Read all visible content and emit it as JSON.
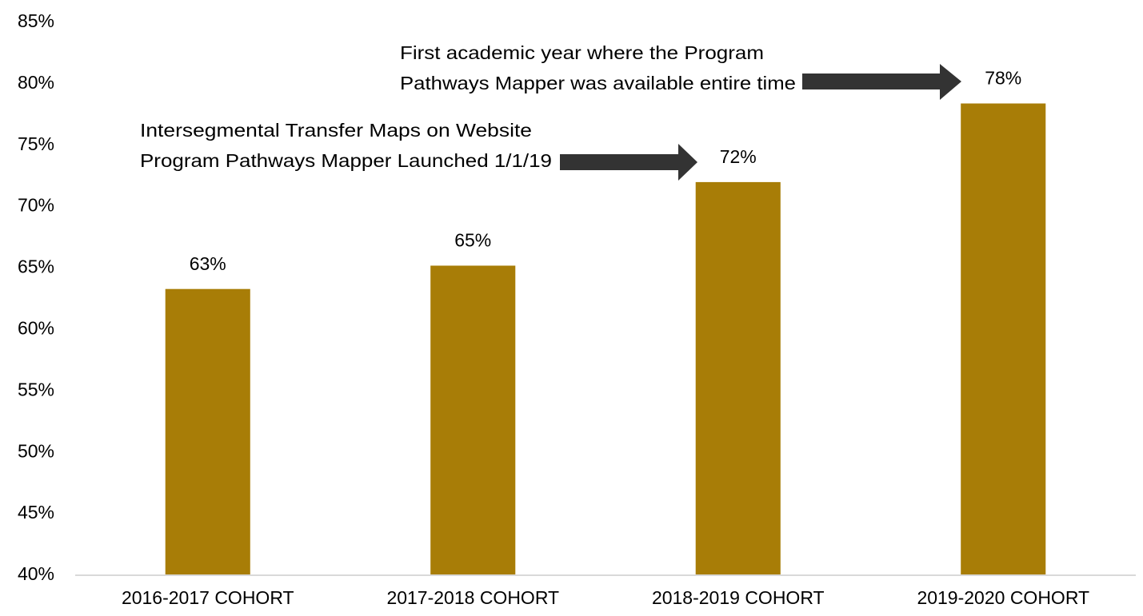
{
  "chart_data": {
    "type": "bar",
    "categories": [
      "2016-2017 COHORT",
      "2017-2018 COHORT",
      "2018-2019 COHORT",
      "2019-2020 COHORT"
    ],
    "values": [
      63.3,
      65.2,
      72.0,
      78.4
    ],
    "value_labels": [
      "63%",
      "65%",
      "72%",
      "78%"
    ],
    "color": "#a87d07",
    "ylim": [
      40,
      85
    ],
    "yticks": [
      {
        "value": 40,
        "label": "40%"
      },
      {
        "value": 45,
        "label": "45%"
      },
      {
        "value": 50,
        "label": "50%"
      },
      {
        "value": 55,
        "label": "55%"
      },
      {
        "value": 60,
        "label": "60%"
      },
      {
        "value": 65,
        "label": "65%"
      },
      {
        "value": 70,
        "label": "70%"
      },
      {
        "value": 75,
        "label": "75%"
      },
      {
        "value": 80,
        "label": "80%"
      },
      {
        "value": 85,
        "label": "85%"
      }
    ],
    "grid": false,
    "annotations": [
      {
        "lines": [
          "Intersegmental Transfer Maps on Website",
          "Program Pathways Mapper Launched 1/1/19"
        ]
      },
      {
        "lines": [
          "First academic year where the Program",
          "Pathways Mapper was available entire time"
        ]
      }
    ]
  }
}
